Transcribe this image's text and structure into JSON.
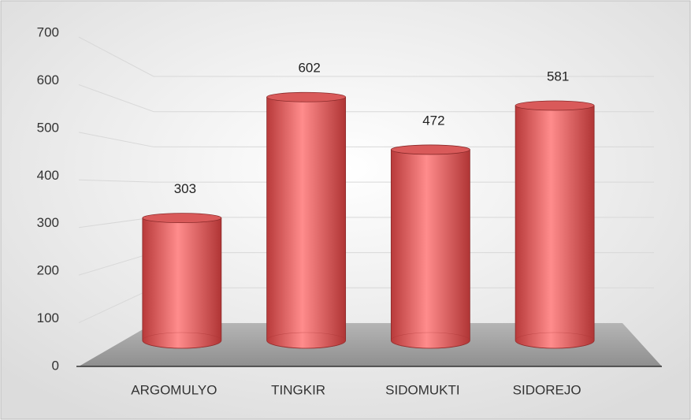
{
  "chart_data": {
    "type": "bar3d",
    "categories": [
      "ARGOMULYO",
      "TINGKIR",
      "SIDOMUKTI",
      "SIDOREJO"
    ],
    "values": [
      303,
      602,
      472,
      581
    ],
    "color": "#e06666",
    "ylim": [
      0,
      700
    ],
    "yticks": [
      0,
      100,
      200,
      300,
      400,
      500,
      600,
      700
    ],
    "grid": true
  }
}
